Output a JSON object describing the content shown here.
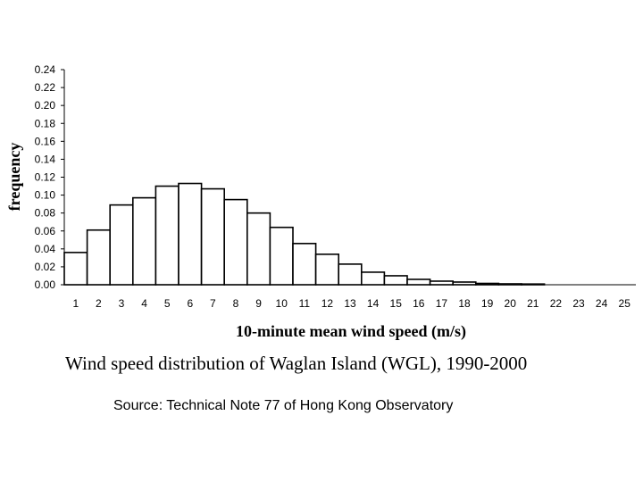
{
  "chart_data": {
    "type": "bar",
    "categories": [
      "1",
      "2",
      "3",
      "4",
      "5",
      "6",
      "7",
      "8",
      "9",
      "10",
      "11",
      "12",
      "13",
      "14",
      "15",
      "16",
      "17",
      "18",
      "19",
      "20",
      "21",
      "22",
      "23",
      "24",
      "25"
    ],
    "values": [
      0.036,
      0.061,
      0.089,
      0.097,
      0.11,
      0.113,
      0.107,
      0.095,
      0.08,
      0.064,
      0.046,
      0.034,
      0.023,
      0.014,
      0.01,
      0.006,
      0.004,
      0.003,
      0.0015,
      0.001,
      0.0008,
      0,
      0,
      0,
      0
    ],
    "xlabel": "10-minute mean wind speed (m/s)",
    "ylabel": "frequency",
    "ylim": [
      0,
      0.24
    ],
    "yticks": [
      "0.00",
      "0.02",
      "0.04",
      "0.06",
      "0.08",
      "0.10",
      "0.12",
      "0.14",
      "0.16",
      "0.18",
      "0.20",
      "0.22",
      "0.24"
    ],
    "caption": "Wind speed distribution of Waglan Island (WGL), 1990-2000",
    "grid": false,
    "bar_color": "#ffffff",
    "bar_edge_color": "#000000"
  },
  "source_text": "Source: Technical Note 77 of Hong Kong Observatory"
}
